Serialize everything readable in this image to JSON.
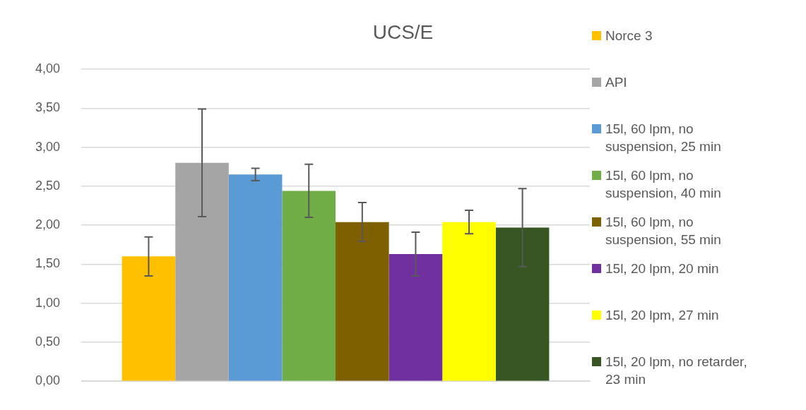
{
  "chart_data": {
    "type": "bar",
    "title": "UCS/E",
    "categories": [
      null
    ],
    "series": [
      {
        "name": "Norce 3",
        "color": "#ffc000",
        "values": [
          1.6
        ],
        "errors": [
          0.25
        ]
      },
      {
        "name": "API",
        "color": "#a5a5a5",
        "values": [
          2.8
        ],
        "errors": [
          0.69
        ]
      },
      {
        "name": "15l, 60 lpm, no suspension, 25 min",
        "color": "#5b9bd5",
        "values": [
          2.65
        ],
        "errors": [
          0.08
        ]
      },
      {
        "name": "15l, 60 lpm, no suspension, 40 min",
        "color": "#70ad47",
        "values": [
          2.44
        ],
        "errors": [
          0.34
        ]
      },
      {
        "name": "15l, 60 lpm, no suspension, 55 min",
        "color": "#7f6000",
        "values": [
          2.04
        ],
        "errors": [
          0.25
        ]
      },
      {
        "name": "15l, 20 lpm, 20 min",
        "color": "#7030a0",
        "values": [
          1.63
        ],
        "errors": [
          0.28
        ]
      },
      {
        "name": "15l, 20 lpm, 27 min",
        "color": "#ffff00",
        "values": [
          2.04
        ],
        "errors": [
          0.15
        ]
      },
      {
        "name": "15l, 20 lpm, no retarder, 23 min",
        "color": "#375623",
        "values": [
          1.97
        ],
        "errors": [
          0.5
        ]
      }
    ],
    "ylim": [
      0,
      4
    ],
    "yticks": [
      {
        "value": 0,
        "label": "0,00"
      },
      {
        "value": 0.5,
        "label": "0,50"
      },
      {
        "value": 1,
        "label": "1,00"
      },
      {
        "value": 1.5,
        "label": "1,50"
      },
      {
        "value": 2,
        "label": "2,00"
      },
      {
        "value": 2.5,
        "label": "2,50"
      },
      {
        "value": 3,
        "label": "3,00"
      },
      {
        "value": 3.5,
        "label": "3,50"
      },
      {
        "value": 4,
        "label": "4,00"
      }
    ],
    "grid": "y",
    "legend": "right"
  }
}
